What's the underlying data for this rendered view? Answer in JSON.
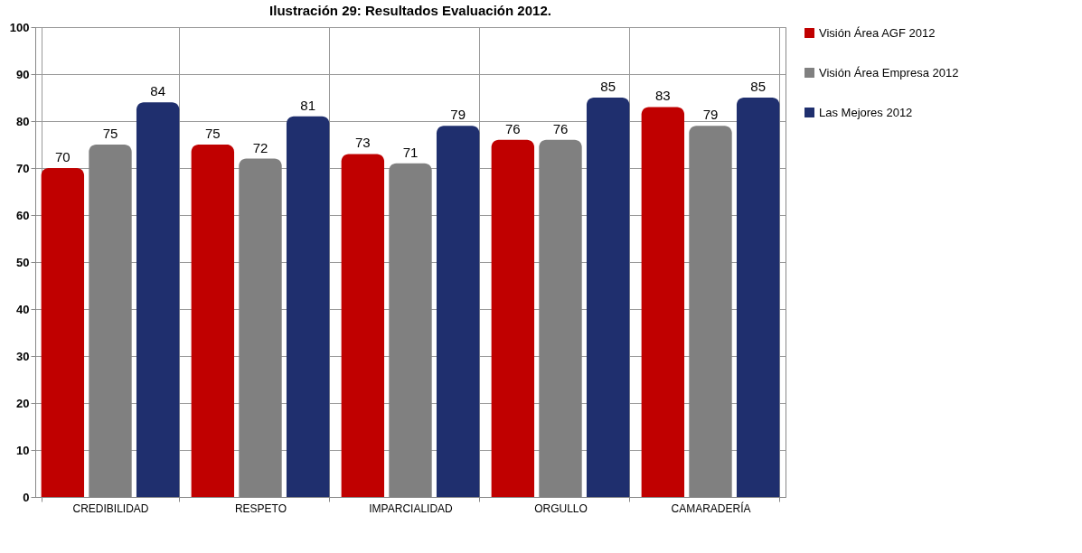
{
  "chart_data": {
    "type": "bar",
    "title": "Ilustración 29: Resultados Evaluación 2012.",
    "categories": [
      "CREDIBILIDAD",
      "RESPETO",
      "IMPARCIALIDAD",
      "ORGULLO",
      "CAMARADERÍA"
    ],
    "series": [
      {
        "name": "Visión Área AGF 2012",
        "color": "#c00000",
        "values": [
          70,
          75,
          73,
          76,
          83
        ]
      },
      {
        "name": "Visión Área Empresa 2012",
        "color": "#808080",
        "values": [
          75,
          72,
          71,
          76,
          79
        ]
      },
      {
        "name": "Las Mejores 2012",
        "color": "#1f2f6e",
        "values": [
          84,
          81,
          79,
          85,
          85
        ]
      }
    ],
    "ylim": [
      0,
      100
    ],
    "yticks": [
      0,
      10,
      20,
      30,
      40,
      50,
      60,
      70,
      80,
      90,
      100
    ],
    "grid": true,
    "legend": "right",
    "data_labels": true
  }
}
